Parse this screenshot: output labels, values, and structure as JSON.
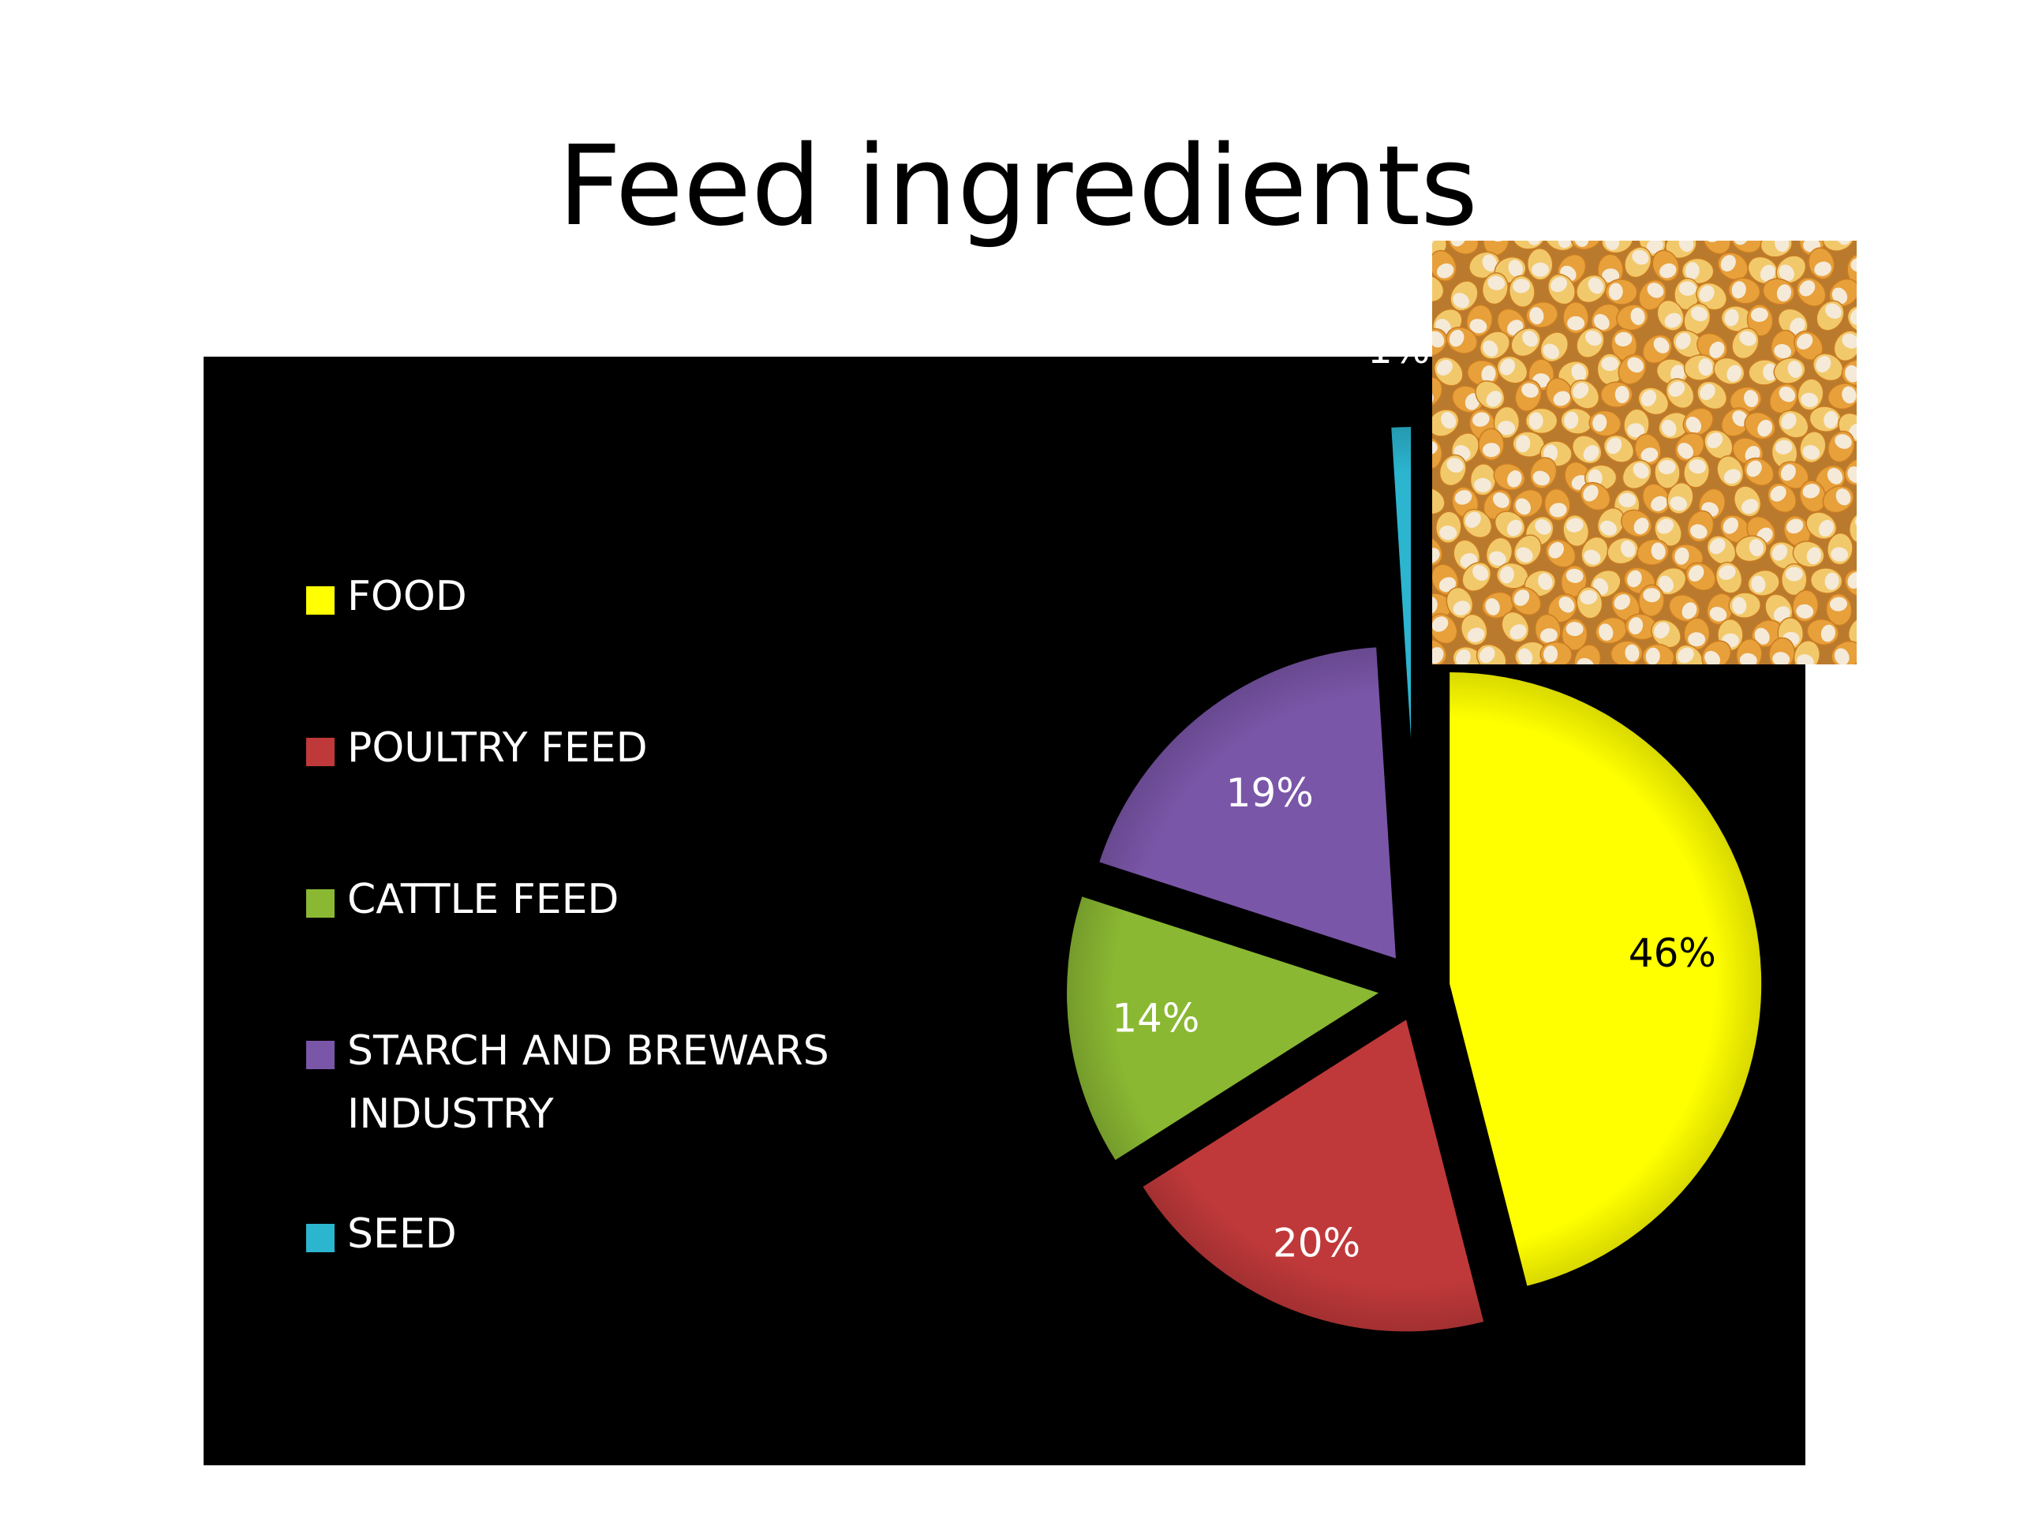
{
  "title": "Feed ingredients",
  "chart_data": {
    "type": "pie",
    "title": "Feed ingredients",
    "categories": [
      "FOOD",
      "POULTRY FEED",
      "CATTLE FEED",
      "STARCH AND BREWARS INDUSTRY",
      "SEED"
    ],
    "values": [
      46,
      20,
      14,
      19,
      1
    ],
    "data_labels": [
      "46%",
      "20%",
      "14%",
      "19%",
      "1%"
    ],
    "colors": [
      "#ffff00",
      "#c0393a",
      "#8ab832",
      "#7a56a8",
      "#2bb5cf"
    ],
    "legend_position": "left",
    "exploded": true
  },
  "legend": {
    "items": [
      {
        "line1": "FOOD",
        "line2": ""
      },
      {
        "line1": "POULTRY FEED",
        "line2": ""
      },
      {
        "line1": "CATTLE FEED",
        "line2": ""
      },
      {
        "line1": "STARCH AND BREWARS",
        "line2": "INDUSTRY"
      },
      {
        "line1": "SEED",
        "line2": ""
      }
    ]
  },
  "photo": {
    "subject": "corn-kernels-photo",
    "colors": [
      "#e8a03a",
      "#f2c96a",
      "#f5ead8",
      "#c97c22"
    ]
  }
}
